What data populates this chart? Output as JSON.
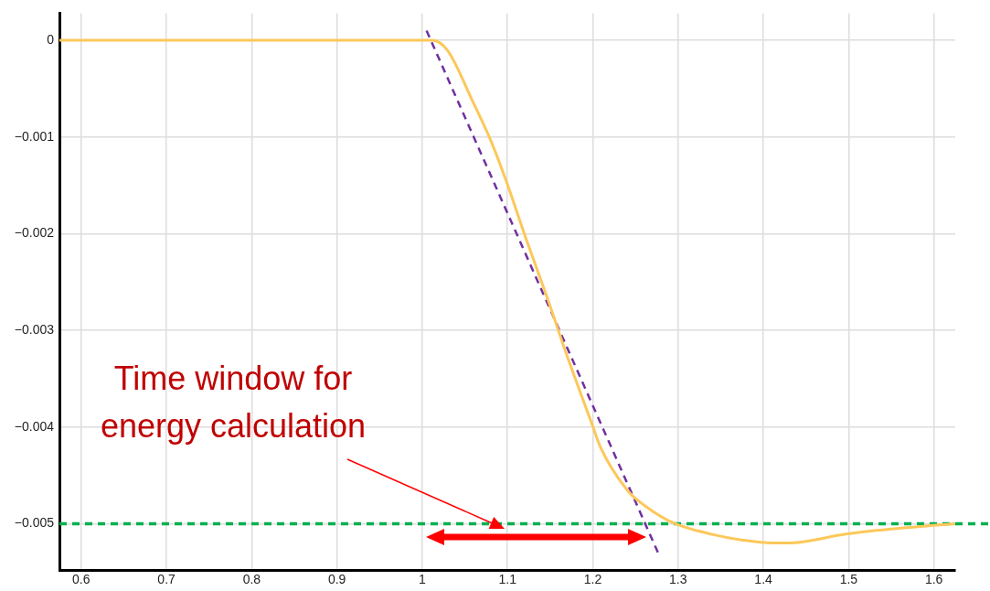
{
  "chart_data": {
    "type": "line",
    "xlim": [
      0.5745,
      1.625
    ],
    "ylim": [
      -0.00548,
      0.00028
    ],
    "xticks": [
      0.6,
      0.7,
      0.8,
      0.9,
      1,
      1.1,
      1.2,
      1.3,
      1.4,
      1.5,
      1.6
    ],
    "yticks": [
      0,
      {
        "value": -0.001,
        "label": "−0.001"
      },
      {
        "value": -0.002,
        "label": "−0.002"
      },
      {
        "value": -0.003,
        "label": "−0.003"
      },
      {
        "value": -0.004,
        "label": "−0.004"
      },
      {
        "value": -0.005,
        "label": "−0.005"
      }
    ],
    "grid": true,
    "legend": false,
    "marker": "none",
    "series": [
      {
        "color": "#fcc85a",
        "line_style": "solid",
        "x": [
          0.5745,
          0.7,
          0.8,
          0.9,
          1.0,
          1.012,
          1.03,
          1.0585,
          1.08,
          1.099,
          1.12,
          1.146,
          1.17,
          1.199,
          1.209,
          1.241,
          1.262,
          1.294,
          1.34,
          1.376,
          1.411,
          1.429,
          1.495,
          1.532,
          1.595,
          1.625
        ],
        "values": [
          0,
          0,
          0,
          0,
          0,
          0,
          -0.00011,
          -0.00062,
          -0.00103,
          -0.00147,
          -0.00201,
          -0.00265,
          -0.00327,
          -0.00397,
          -0.00421,
          -0.00466,
          -0.00482,
          -0.00499,
          -0.00511,
          -0.00517,
          -0.0052,
          -0.0052,
          -0.00511,
          -0.00507,
          -0.00502,
          -0.005
        ]
      },
      {
        "type": "line",
        "color": "#7030a0",
        "line_style": "dashed",
        "x": [
          1.005,
          1.2765
        ],
        "values": [
          0.0001,
          -0.0053
        ]
      }
    ],
    "ref_lines": [
      {
        "axis": "y",
        "value": -0.005,
        "color": "#00b050",
        "line_style": "dashed"
      }
    ],
    "annotations": [
      "Time window for energy calculation"
    ]
  }
}
